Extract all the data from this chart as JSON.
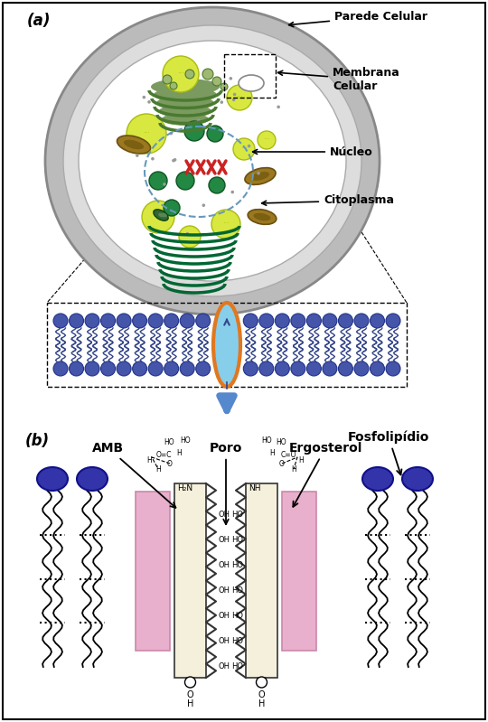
{
  "bg_color": "#ffffff",
  "label_a": "(a)",
  "label_b": "(b)",
  "cell_outer_color": "#c0c0c0",
  "cell_inner_color": "#ffffff",
  "cell_border_color": "#909090",
  "nucleus_border_color": "#7799bb",
  "yellow_color": "#d8e840",
  "yellow_edge": "#b0c010",
  "green_dark": "#006633",
  "green_med": "#228844",
  "mito_color": "#8B6914",
  "mito_edge": "#5a4010",
  "phoslipid_head": "#3333aa",
  "pore_fill": "#f5f0dc",
  "pink_rect": "#e8b0cc",
  "pink_edge": "#cc88aa",
  "orange_border": "#e07820",
  "blue_drug": "#87ceeb",
  "arrow_blue": "#5588cc",
  "dot_color": "#888888"
}
